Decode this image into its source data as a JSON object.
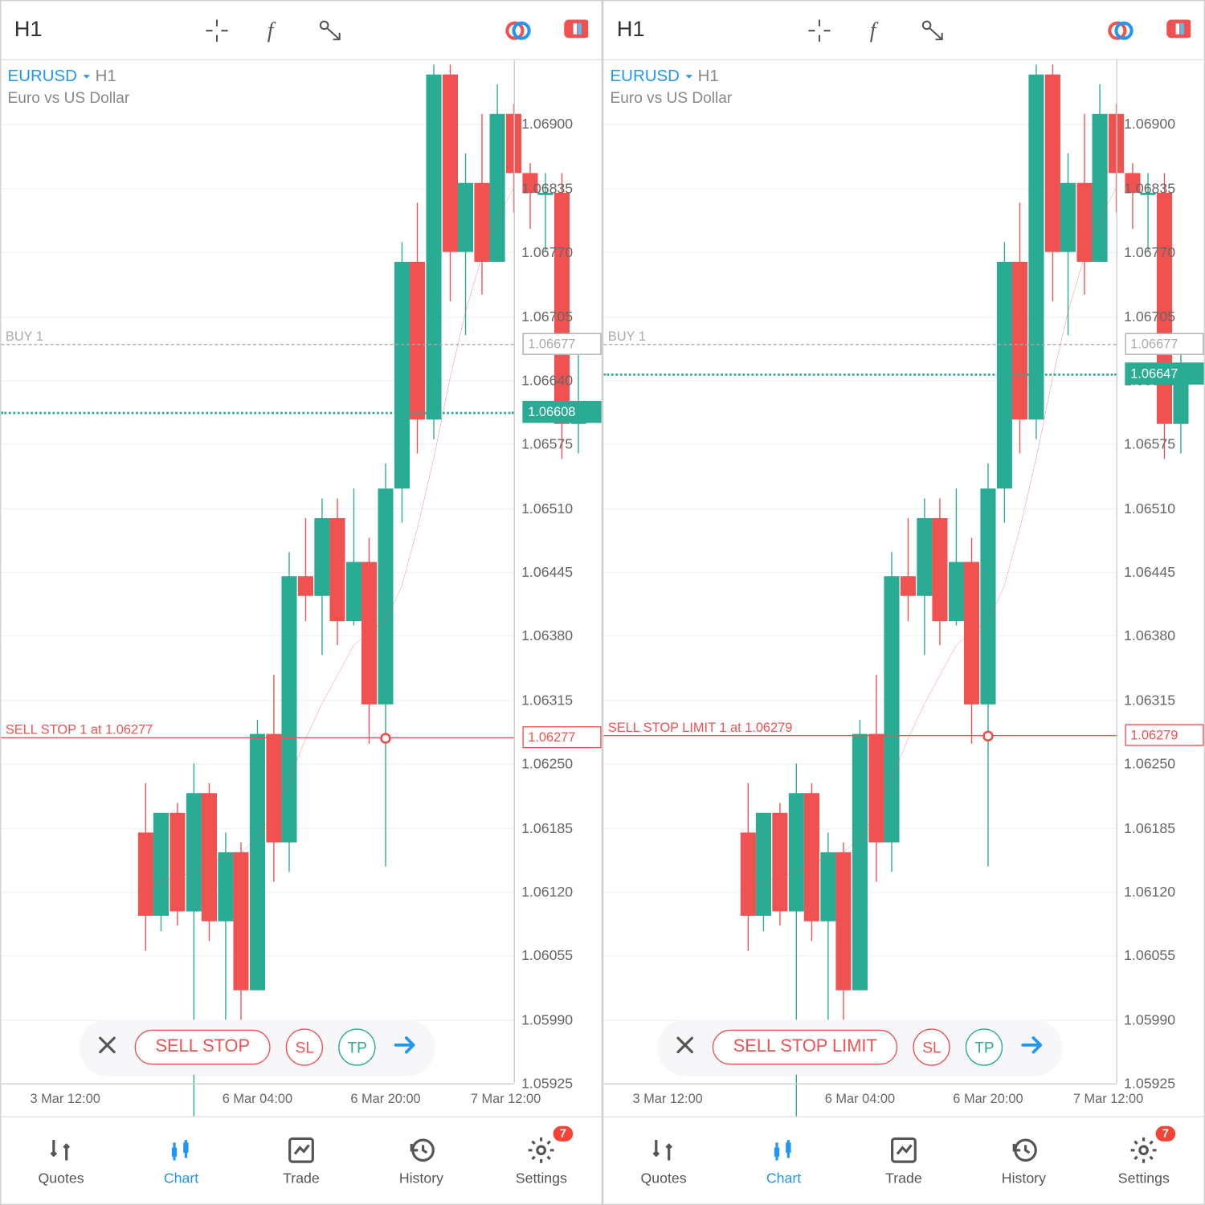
{
  "timeframe": "H1",
  "symbol": "EURUSD",
  "symbol_suffix": "H1",
  "desc": "Euro vs US Dollar",
  "colors": {
    "up": "#2aab94",
    "down": "#f05252",
    "ma": "#f05252",
    "grid": "#f2f2f2",
    "axis_text": "#666",
    "buy_line": "#aaaaaa",
    "sell_line": "#f05252",
    "price_line": "#2aab94",
    "blue": "#2196f3"
  },
  "yaxis": {
    "min": 1.05925,
    "max": 1.06965,
    "step": 0.00065,
    "labels": [
      "1.05925",
      "1.05990",
      "1.06055",
      "1.06120",
      "1.06185",
      "1.06250",
      "1.06315",
      "1.06380",
      "1.06445",
      "1.06510",
      "1.06575",
      "1.06640",
      "1.06705",
      "1.06770",
      "1.06835",
      "1.06900"
    ]
  },
  "xaxis": {
    "labels": [
      {
        "t": -5,
        "text": "3 Mar 12:00"
      },
      {
        "t": 7,
        "text": "6 Mar 04:00"
      },
      {
        "t": 15,
        "text": "6 Mar 20:00"
      },
      {
        "t": 22.5,
        "text": "7 Mar 12:00"
      }
    ],
    "min": -9,
    "max": 23
  },
  "candles": [
    {
      "o": 1.0618,
      "h": 1.0623,
      "l": 1.0606,
      "c": 1.06095
    },
    {
      "o": 1.06095,
      "h": 1.062,
      "l": 1.0608,
      "c": 1.062
    },
    {
      "o": 1.062,
      "h": 1.0621,
      "l": 1.06085,
      "c": 1.061
    },
    {
      "o": 1.061,
      "h": 1.0625,
      "l": 1.0587,
      "c": 1.0622
    },
    {
      "o": 1.0622,
      "h": 1.0623,
      "l": 1.0607,
      "c": 1.0609
    },
    {
      "o": 1.0609,
      "h": 1.0618,
      "l": 1.0599,
      "c": 1.0616
    },
    {
      "o": 1.0616,
      "h": 1.0617,
      "l": 1.0594,
      "c": 1.0602
    },
    {
      "o": 1.0602,
      "h": 1.06295,
      "l": 1.0602,
      "c": 1.0628
    },
    {
      "o": 1.0628,
      "h": 1.0634,
      "l": 1.0613,
      "c": 1.0617
    },
    {
      "o": 1.0617,
      "h": 1.06465,
      "l": 1.0614,
      "c": 1.0644
    },
    {
      "o": 1.0644,
      "h": 1.065,
      "l": 1.06395,
      "c": 1.0642
    },
    {
      "o": 1.0642,
      "h": 1.0652,
      "l": 1.0636,
      "c": 1.065
    },
    {
      "o": 1.065,
      "h": 1.0652,
      "l": 1.0637,
      "c": 1.06395
    },
    {
      "o": 1.06395,
      "h": 1.0653,
      "l": 1.0639,
      "c": 1.06455
    },
    {
      "o": 1.06455,
      "h": 1.0648,
      "l": 1.0627,
      "c": 1.0631
    },
    {
      "o": 1.0631,
      "h": 1.06555,
      "l": 1.06145,
      "c": 1.0653
    },
    {
      "o": 1.0653,
      "h": 1.0678,
      "l": 1.06495,
      "c": 1.0676
    },
    {
      "o": 1.0676,
      "h": 1.0682,
      "l": 1.06565,
      "c": 1.066
    },
    {
      "o": 1.066,
      "h": 1.0696,
      "l": 1.0658,
      "c": 1.0695
    },
    {
      "o": 1.0695,
      "h": 1.0696,
      "l": 1.0672,
      "c": 1.0677
    },
    {
      "o": 1.0677,
      "h": 1.0687,
      "l": 1.06685,
      "c": 1.0684
    },
    {
      "o": 1.0684,
      "h": 1.0691,
      "l": 1.06727,
      "c": 1.0676
    },
    {
      "o": 1.0676,
      "h": 1.0694,
      "l": 1.0676,
      "c": 1.0691
    },
    {
      "o": 1.0691,
      "h": 1.0692,
      "l": 1.0681,
      "c": 1.0685
    },
    {
      "o": 1.0685,
      "h": 1.0686,
      "l": 1.06793,
      "c": 1.0683
    },
    {
      "o": 1.0683,
      "h": 1.0685,
      "l": 1.0677,
      "c": 1.0683
    },
    {
      "o": 1.0683,
      "h": 1.0685,
      "l": 1.0656,
      "c": 1.06595
    },
    {
      "o": 1.06595,
      "h": 1.0667,
      "l": 1.06565,
      "c": 1.06608
    }
  ],
  "ma": [
    1.0612,
    1.0613,
    1.06135,
    1.0614,
    1.06148,
    1.06155,
    1.0616,
    1.06175,
    1.062,
    1.06235,
    1.06275,
    1.0631,
    1.0634,
    1.0637,
    1.06385,
    1.06395,
    1.0643,
    1.0649,
    1.0656,
    1.0664,
    1.0671,
    1.06765,
    1.06805,
    1.06835,
    1.06845,
    1.06845,
    1.06828,
    1.06795
  ],
  "panels": [
    {
      "buy": {
        "label": "BUY 1",
        "price": 1.06677,
        "tag": "1.06677"
      },
      "sell": {
        "label": "SELL STOP 1 at 1.06277",
        "price": 1.06277,
        "tag": "1.06277",
        "dot_t": 15
      },
      "current": {
        "price": 1.06608,
        "tag": "1.06608"
      },
      "last_close": 1.06608,
      "toolbar_label": "SELL STOP"
    },
    {
      "buy": {
        "label": "BUY 1",
        "price": 1.06677,
        "tag": "1.06677"
      },
      "sell": {
        "label": "SELL STOP LIMIT 1 at 1.06279",
        "price": 1.06279,
        "tag": "1.06279",
        "dot_t": 15
      },
      "current": {
        "price": 1.06647,
        "tag": "1.06647"
      },
      "last_close": 1.06647,
      "toolbar_label": "SELL STOP LIMIT"
    }
  ],
  "nav": [
    {
      "label": "Quotes"
    },
    {
      "label": "Chart",
      "active": true
    },
    {
      "label": "Trade"
    },
    {
      "label": "History"
    },
    {
      "label": "Settings",
      "badge": "7"
    }
  ],
  "sl_label": "SL",
  "tp_label": "TP"
}
